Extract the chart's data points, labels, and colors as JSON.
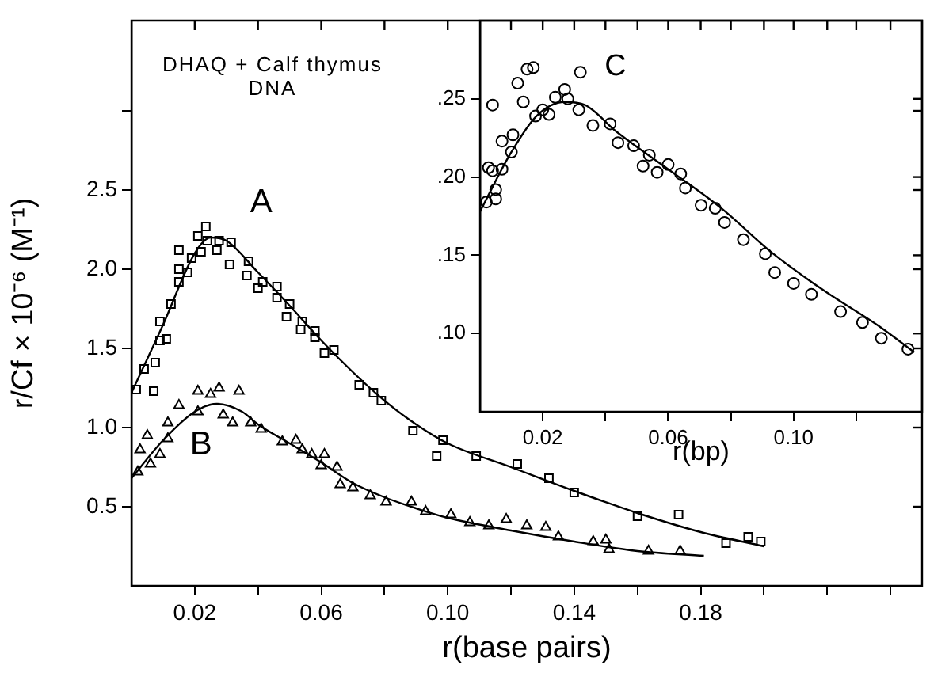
{
  "chart_data": [
    {
      "type": "scatter",
      "xlabel": "r(base pairs)",
      "ylabel": "r/Cf × 10⁻⁶ (M⁻¹)",
      "xlim": [
        0,
        0.25
      ],
      "ylim": [
        0,
        3.57
      ],
      "xticks": [
        {
          "value": 0.02,
          "label": "0.02"
        },
        {
          "value": 0.04,
          "label": null
        },
        {
          "value": 0.06,
          "label": "0.06"
        },
        {
          "value": 0.08,
          "label": null
        },
        {
          "value": 0.1,
          "label": "0.10"
        },
        {
          "value": 0.12,
          "label": null
        },
        {
          "value": 0.14,
          "label": "0.14"
        },
        {
          "value": 0.16,
          "label": null
        },
        {
          "value": 0.18,
          "label": "0.18"
        },
        {
          "value": 0.2,
          "label": null
        },
        {
          "value": 0.22,
          "label": null
        },
        {
          "value": 0.24,
          "label": null
        }
      ],
      "yticks": [
        0.5,
        {
          "value": 1,
          "label": "1.0"
        },
        1.5,
        {
          "value": 2,
          "label": "2.0"
        },
        2.5,
        {
          "value": 3,
          "label": null
        }
      ],
      "annotations": [
        "DHAQ + Calf thymus DNA"
      ],
      "series": [
        {
          "type": "scatter",
          "marker": "square",
          "color": "#000000",
          "x": [
            0.0015,
            0.007,
            0.004,
            0.0075,
            0.009,
            0.011,
            0.009,
            0.0125,
            0.015,
            0.015,
            0.0177,
            0.015,
            0.019,
            0.022,
            0.021,
            0.0235,
            0.024,
            0.027,
            0.0277,
            0.0315,
            0.031,
            0.037,
            0.0365,
            0.0415,
            0.04,
            0.046,
            0.046,
            0.05,
            0.049,
            0.054,
            0.0535,
            0.058,
            0.058,
            0.061,
            0.064,
            0.072,
            0.0765,
            0.079,
            0.089,
            0.0965,
            0.0985,
            0.109,
            0.122,
            0.132,
            0.14,
            0.16,
            0.173,
            0.188,
            0.195,
            0.199
          ],
          "values": [
            1.24,
            1.23,
            1.37,
            1.41,
            1.55,
            1.56,
            1.67,
            1.78,
            1.92,
            2.0,
            1.98,
            2.12,
            2.07,
            2.11,
            2.21,
            2.27,
            2.18,
            2.12,
            2.18,
            2.17,
            2.03,
            2.05,
            1.96,
            1.92,
            1.88,
            1.89,
            1.82,
            1.78,
            1.7,
            1.67,
            1.62,
            1.61,
            1.57,
            1.47,
            1.49,
            1.27,
            1.22,
            1.17,
            0.98,
            0.82,
            0.92,
            0.82,
            0.77,
            0.68,
            0.59,
            0.44,
            0.45,
            0.27,
            0.31,
            0.28
          ]
        },
        {
          "type": "line",
          "name": "A",
          "marker": "none",
          "color": "#000000",
          "x": [
            0,
            0.01,
            0.02,
            0.025,
            0.03,
            0.04,
            0.05,
            0.06,
            0.07,
            0.08,
            0.09,
            0.1,
            0.12,
            0.14,
            0.16,
            0.18,
            0.2
          ],
          "values": [
            1.22,
            1.65,
            2.1,
            2.2,
            2.18,
            1.98,
            1.77,
            1.55,
            1.35,
            1.17,
            1.02,
            0.9,
            0.75,
            0.6,
            0.46,
            0.34,
            0.25
          ]
        },
        {
          "type": "scatter",
          "marker": "triangle",
          "color": "#000000",
          "x": [
            0.002,
            0.0027,
            0.005,
            0.006,
            0.009,
            0.0115,
            0.0115,
            0.015,
            0.021,
            0.021,
            0.025,
            0.0277,
            0.034,
            0.029,
            0.032,
            0.0377,
            0.041,
            0.0477,
            0.052,
            0.054,
            0.057,
            0.061,
            0.06,
            0.065,
            0.066,
            0.07,
            0.0755,
            0.0805,
            0.0885,
            0.093,
            0.101,
            0.107,
            0.113,
            0.1185,
            0.125,
            0.131,
            0.135,
            0.146,
            0.15,
            0.151,
            0.1635,
            0.1735
          ],
          "values": [
            0.72,
            0.86,
            0.95,
            0.77,
            0.83,
            0.93,
            1.03,
            1.14,
            1.1,
            1.23,
            1.21,
            1.25,
            1.23,
            1.08,
            1.03,
            1.03,
            0.99,
            0.91,
            0.92,
            0.86,
            0.83,
            0.83,
            0.76,
            0.75,
            0.64,
            0.62,
            0.57,
            0.53,
            0.53,
            0.47,
            0.45,
            0.4,
            0.38,
            0.42,
            0.38,
            0.37,
            0.31,
            0.28,
            0.29,
            0.23,
            0.22,
            0.22
          ]
        },
        {
          "type": "line",
          "name": "B",
          "marker": "none",
          "color": "#000000",
          "x": [
            0,
            0.01,
            0.02,
            0.027,
            0.035,
            0.04,
            0.05,
            0.06,
            0.07,
            0.08,
            0.09,
            0.1,
            0.12,
            0.14,
            0.16,
            0.181
          ],
          "values": [
            0.68,
            0.92,
            1.1,
            1.15,
            1.1,
            1.02,
            0.9,
            0.78,
            0.65,
            0.56,
            0.49,
            0.43,
            0.35,
            0.28,
            0.22,
            0.19
          ]
        }
      ]
    },
    {
      "type": "scatter",
      "xlabel": "r(bp)",
      "xlim": [
        0,
        0.141
      ],
      "ylim": [
        0.05,
        0.3
      ],
      "xticks": [
        {
          "value": 0.02,
          "label": "0.02"
        },
        {
          "value": 0.04,
          "label": null
        },
        {
          "value": 0.06,
          "label": "0.06"
        },
        {
          "value": 0.08,
          "label": null
        },
        {
          "value": 0.1,
          "label": "0.10"
        },
        {
          "value": 0.12,
          "label": null
        }
      ],
      "yticks": [
        {
          "value": 0.1,
          "label": ".10"
        },
        {
          "value": 0.15,
          "label": ".15"
        },
        {
          "value": 0.2,
          "label": ".20"
        },
        {
          "value": 0.25,
          "label": ".25"
        }
      ],
      "series": [
        {
          "type": "scatter",
          "marker": "circle",
          "color": "#000000",
          "x": [
            0.002,
            0.0027,
            0.004,
            0.005,
            0.005,
            0.004,
            0.007,
            0.007,
            0.01,
            0.0105,
            0.012,
            0.0138,
            0.015,
            0.017,
            0.0177,
            0.02,
            0.022,
            0.024,
            0.027,
            0.028,
            0.032,
            0.0315,
            0.036,
            0.0415,
            0.044,
            0.049,
            0.052,
            0.054,
            0.0565,
            0.06,
            0.064,
            0.0655,
            0.0705,
            0.075,
            0.078,
            0.084,
            0.091,
            0.094,
            0.1,
            0.1057,
            0.115,
            0.122,
            0.128,
            0.1365
          ],
          "values": [
            0.184,
            0.206,
            0.204,
            0.186,
            0.192,
            0.246,
            0.205,
            0.223,
            0.216,
            0.227,
            0.26,
            0.248,
            0.269,
            0.27,
            0.239,
            0.243,
            0.24,
            0.251,
            0.256,
            0.25,
            0.267,
            0.243,
            0.233,
            0.234,
            0.222,
            0.22,
            0.207,
            0.214,
            0.203,
            0.208,
            0.202,
            0.193,
            0.182,
            0.18,
            0.171,
            0.16,
            0.151,
            0.139,
            0.132,
            0.125,
            0.114,
            0.107,
            0.097,
            0.09
          ]
        },
        {
          "type": "line",
          "name": "C",
          "marker": "none",
          "color": "#000000",
          "x": [
            0,
            0.01,
            0.018,
            0.027,
            0.0335,
            0.0435,
            0.06,
            0.077,
            0.0935,
            0.11,
            0.127,
            0.1385
          ],
          "values": [
            0.178,
            0.216,
            0.239,
            0.248,
            0.246,
            0.229,
            0.205,
            0.18,
            0.151,
            0.127,
            0.105,
            0.088
          ]
        }
      ]
    }
  ]
}
